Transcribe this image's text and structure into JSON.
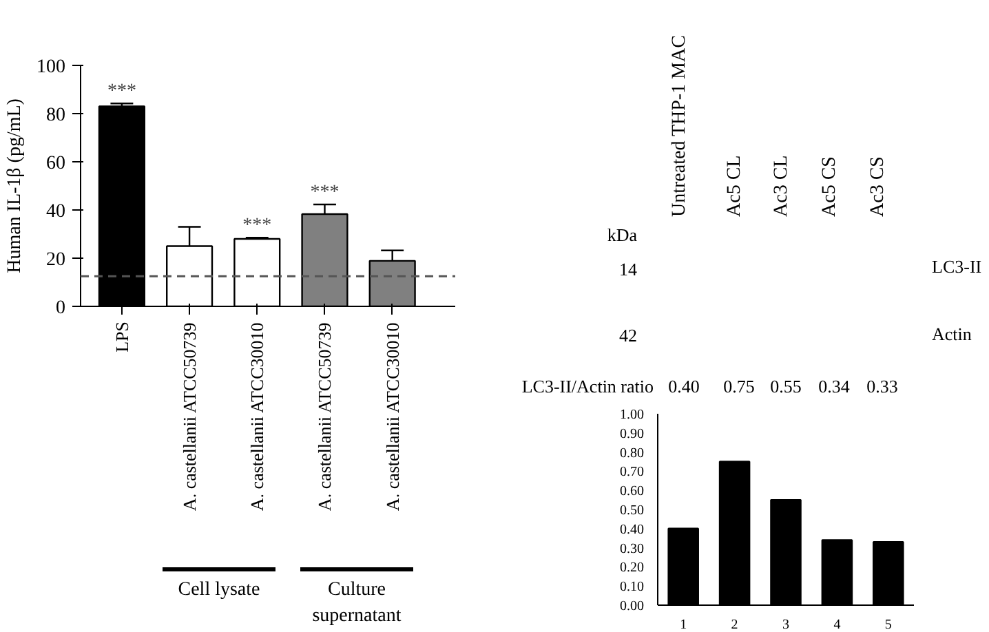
{
  "chart_data": [
    {
      "type": "bar",
      "ylabel": "Human IL-1β (pg/mL)",
      "categories": [
        "LPS",
        "A. castellanii ATCC50739",
        "A. castellanii ATCC30010",
        "A. castellanii ATCC50739",
        "A. castellanii ATCC30010"
      ],
      "values": [
        83,
        25,
        28,
        38.3,
        18.9
      ],
      "colors": [
        "#000000",
        "#ffffff",
        "#ffffff",
        "#808080",
        "#808080"
      ],
      "errors": [
        [
          83,
          84.2
        ],
        [
          25,
          33
        ],
        [
          28,
          28.5
        ],
        [
          38.3,
          42.3
        ],
        [
          18.9,
          23.2
        ]
      ],
      "value_labels": [
        "***",
        null,
        "***",
        "***",
        null
      ],
      "ylim": [
        0,
        100
      ],
      "yticks": [
        0,
        20,
        40,
        60,
        80,
        100
      ],
      "ref_lines": [
        {
          "axis": "y",
          "value": 12.5,
          "line_style": "dashed",
          "color": "#555555"
        }
      ],
      "annotations": [
        "Cell lysate",
        "Culture supernatant"
      ]
    },
    {
      "type": "other",
      "categories": [
        "Untreated THP-1 MAC",
        "Ac5 CL",
        "Ac3 CL",
        "Ac5 CS",
        "Ac3 CS"
      ],
      "annotations": [
        "kDa",
        "14",
        "42",
        "LC3-II",
        "Actin",
        "LC3-II/Actin ratio",
        "0.40",
        "0.75",
        "0.55",
        "0.34",
        "0.33"
      ]
    },
    {
      "type": "bar",
      "categories": [
        "1",
        "2",
        "3",
        "4",
        "5"
      ],
      "values": [
        0.4,
        0.75,
        0.55,
        0.34,
        0.33
      ],
      "color": "#000000",
      "ylim": [
        0,
        1
      ],
      "yticks": [
        {
          "value": 0,
          "label": "0.00"
        },
        {
          "value": 0.1,
          "label": "0.10"
        },
        {
          "value": 0.2,
          "label": "0.20"
        },
        {
          "value": 0.3,
          "label": "0.30"
        },
        {
          "value": 0.4,
          "label": "0.40"
        },
        {
          "value": 0.5,
          "label": "0.50"
        },
        {
          "value": 0.6,
          "label": "0.60"
        },
        {
          "value": 0.7,
          "label": "0.70"
        },
        {
          "value": 0.8,
          "label": "0.80"
        },
        {
          "value": 0.9,
          "label": "0.90"
        },
        {
          "value": 1,
          "label": "1.00"
        }
      ]
    }
  ]
}
